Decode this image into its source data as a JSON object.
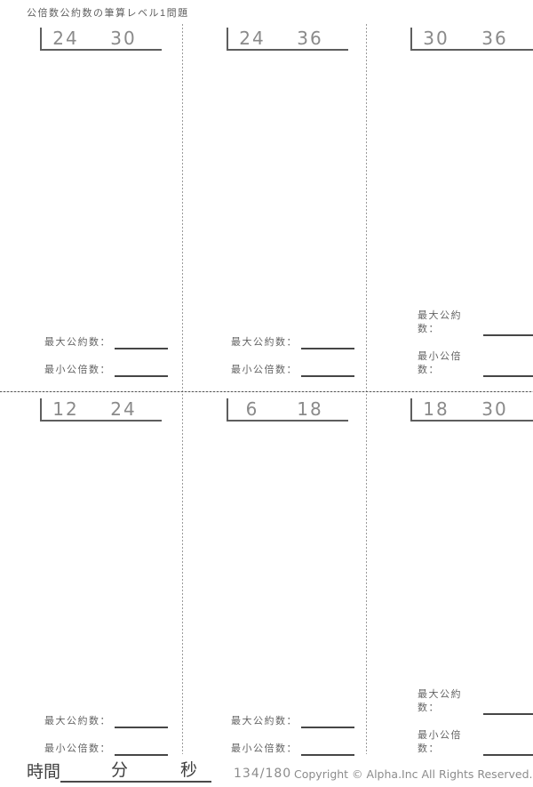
{
  "title": "公倍数公約数の筆算レベル1問題",
  "problems": [
    {
      "a": "24",
      "b": "30"
    },
    {
      "a": "24",
      "b": "36"
    },
    {
      "a": "30",
      "b": "36"
    },
    {
      "a": "12",
      "b": "24"
    },
    {
      "a": "6",
      "b": "18"
    },
    {
      "a": "18",
      "b": "30"
    }
  ],
  "answer_labels": {
    "gcd": "最大公約数：",
    "lcm": "最小公倍数："
  },
  "footer": {
    "time_label": "時間",
    "minutes_label": "分",
    "seconds_label": "秒",
    "page_number": "134/180",
    "copyright": "Copyright ©  Alpha.Inc All Rights Reserved."
  },
  "colors": {
    "title_text": "#5f5f5f",
    "problem_numbers": "#8a8a8a",
    "bracket_line": "#5e5e5e",
    "answer_line": "#464646",
    "divider_dots": "#9a9a9a",
    "footer_serif_text": "#3f3f3f",
    "footer_gray_text": "#8c8c8c"
  }
}
